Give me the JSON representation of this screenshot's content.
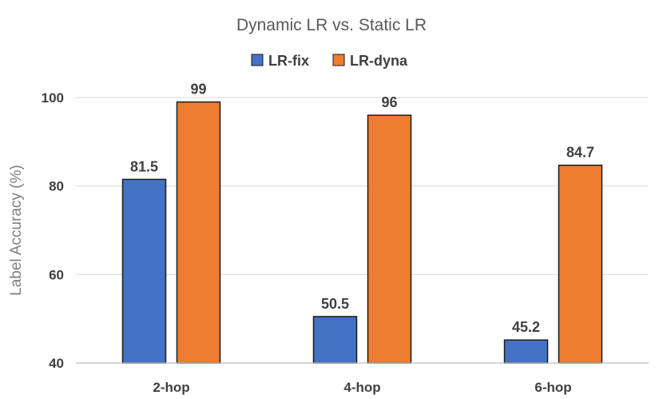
{
  "chart_data": {
    "type": "bar",
    "title": "Dynamic LR vs. Static LR",
    "xlabel": "",
    "ylabel": "Label Accuracy (%)",
    "categories": [
      "2-hop",
      "4-hop",
      "6-hop"
    ],
    "series": [
      {
        "name": "LR-fix",
        "color": "#4472c4",
        "values": [
          81.5,
          50.5,
          45.2
        ],
        "labels": [
          "81.5",
          "50.5",
          "45.2"
        ]
      },
      {
        "name": "LR-dyna",
        "color": "#ed7d31",
        "values": [
          99,
          96,
          84.7
        ],
        "labels": [
          "99",
          "96",
          "84.7"
        ]
      }
    ],
    "ylim": [
      40,
      100
    ],
    "yticks": [
      "40",
      "60",
      "80",
      "100"
    ],
    "grid": true,
    "legend": "top-center"
  }
}
